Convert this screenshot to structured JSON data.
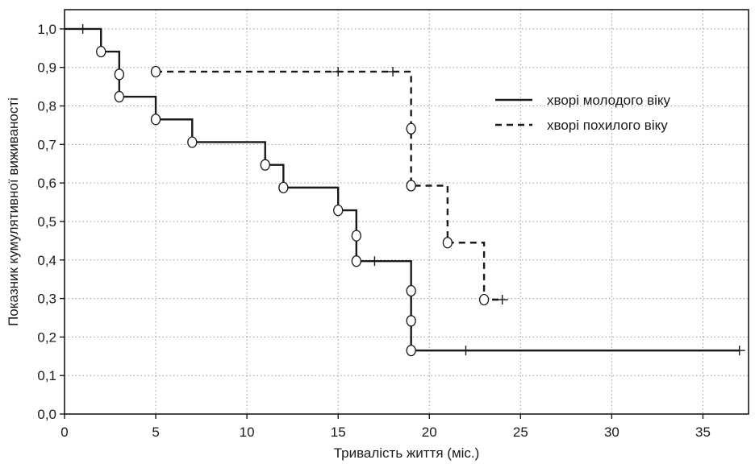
{
  "chart_data": {
    "type": "line",
    "title": "",
    "xlabel": "Тривалість життя (міс.)",
    "ylabel": "Показник кумулятивної виживаності",
    "xlim": [
      0,
      37.5
    ],
    "ylim": [
      0.0,
      1.05
    ],
    "xticks": [
      0,
      5,
      10,
      15,
      20,
      25,
      30,
      35
    ],
    "yticks": [
      0.0,
      0.1,
      0.2,
      0.3,
      0.4,
      0.5,
      0.6,
      0.7,
      0.8,
      0.9,
      1.0
    ],
    "ytick_labels": [
      "0,0",
      "0,1",
      "0,2",
      "0,3",
      "0,4",
      "0,5",
      "0,6",
      "0,7",
      "0,8",
      "0,9",
      "1,0"
    ],
    "xtick_labels": [
      "0",
      "5",
      "10",
      "15",
      "20",
      "25",
      "30",
      "35"
    ],
    "grid": true,
    "legend_position": "top-right",
    "series": [
      {
        "name": "хворі молодого віку",
        "style": "solid",
        "color": "#1a1a1a",
        "steps": [
          [
            0,
            1.0
          ],
          [
            2,
            0.941
          ],
          [
            3,
            0.824
          ],
          [
            5,
            0.765
          ],
          [
            7,
            0.706
          ],
          [
            11,
            0.647
          ],
          [
            12,
            0.588
          ],
          [
            15,
            0.529
          ],
          [
            16,
            0.397
          ],
          [
            19,
            0.165
          ],
          [
            37,
            0.165
          ]
        ],
        "events": [
          [
            2,
            0.941
          ],
          [
            3,
            0.882
          ],
          [
            3,
            0.824
          ],
          [
            5,
            0.765
          ],
          [
            7,
            0.706
          ],
          [
            11,
            0.647
          ],
          [
            12,
            0.588
          ],
          [
            15,
            0.529
          ],
          [
            16,
            0.463
          ],
          [
            16,
            0.397
          ],
          [
            19,
            0.32
          ],
          [
            19,
            0.242
          ],
          [
            19,
            0.165
          ]
        ],
        "censored": [
          [
            1,
            1.0
          ],
          [
            17,
            0.397
          ],
          [
            22,
            0.165
          ],
          [
            37,
            0.165
          ]
        ]
      },
      {
        "name": "хворі похилого віку",
        "style": "dashed",
        "color": "#1a1a1a",
        "steps": [
          [
            5,
            0.889
          ],
          [
            19,
            0.593
          ],
          [
            21,
            0.445
          ],
          [
            23,
            0.297
          ],
          [
            24,
            0.297
          ]
        ],
        "events": [
          [
            5,
            0.889
          ],
          [
            19,
            0.741
          ],
          [
            19,
            0.593
          ],
          [
            21,
            0.445
          ],
          [
            23,
            0.297
          ]
        ],
        "censored": [
          [
            15,
            0.889
          ],
          [
            18,
            0.889
          ],
          [
            24,
            0.297
          ]
        ]
      }
    ]
  }
}
